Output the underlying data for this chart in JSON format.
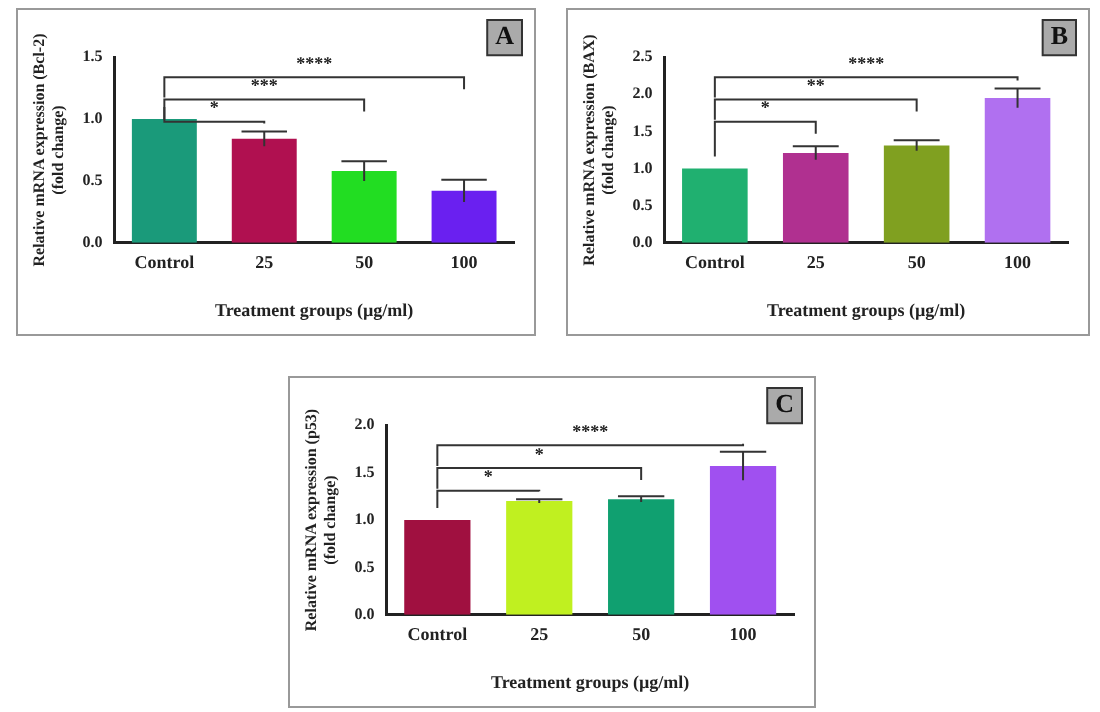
{
  "chart_data": [
    {
      "type": "bar",
      "title": "A",
      "categories": [
        "Control",
        "25",
        "50",
        "100"
      ],
      "values": [
        1.0,
        0.84,
        0.58,
        0.42
      ],
      "errors": [
        null,
        0.06,
        0.08,
        0.09
      ],
      "colors": [
        "#1a9a7a",
        "#b01050",
        "#22dd22",
        "#6a20f0"
      ],
      "ylim": [
        0,
        1.5
      ],
      "yticks": [
        {
          "value": 0,
          "label": "0.0"
        },
        0.5,
        {
          "value": 1,
          "label": "1.0"
        },
        1.5
      ],
      "ylabel": "Relative mRNA expression (Bcl-2)\n(fold change)",
      "xlabel": "Treatment groups (µg/ml)",
      "annotations": [
        "*",
        "***",
        "****"
      ],
      "grid": false,
      "legend": false
    },
    {
      "type": "bar",
      "title": "B",
      "categories": [
        "Control",
        "25",
        "50",
        "100"
      ],
      "values": [
        1.0,
        1.21,
        1.31,
        1.95
      ],
      "errors": [
        null,
        0.09,
        0.07,
        0.13
      ],
      "colors": [
        "#20b070",
        "#b03090",
        "#80a020",
        "#b070f0"
      ],
      "ylim": [
        0,
        2.5
      ],
      "yticks": [
        {
          "value": 0,
          "label": "0.0"
        },
        0.5,
        {
          "value": 1,
          "label": "1.0"
        },
        1.5,
        {
          "value": 2,
          "label": "2.0"
        },
        2.5
      ],
      "ylabel": "Relative mRNA expression (BAX)\n(fold change)",
      "xlabel": "Treatment groups (µg/ml)",
      "annotations": [
        "*",
        "**",
        "****"
      ],
      "grid": false,
      "legend": false
    },
    {
      "type": "bar",
      "title": "C",
      "categories": [
        "Control",
        "25",
        "50",
        "100"
      ],
      "values": [
        1.0,
        1.2,
        1.22,
        1.57
      ],
      "errors": [
        null,
        0.02,
        0.03,
        0.15
      ],
      "colors": [
        "#a01040",
        "#c0f020",
        "#10a070",
        "#a050f0"
      ],
      "ylim": [
        0,
        2
      ],
      "yticks": [
        {
          "value": 0,
          "label": "0.0"
        },
        0.5,
        {
          "value": 1,
          "label": "1.0"
        },
        1.5,
        {
          "value": 2,
          "label": "2.0"
        }
      ],
      "ylabel": "Relative mRNA expression (p53)\n(fold change)",
      "xlabel": "Treatment groups (µg/ml)",
      "annotations": [
        "*",
        "*",
        "****"
      ],
      "grid": false,
      "legend": false
    }
  ]
}
